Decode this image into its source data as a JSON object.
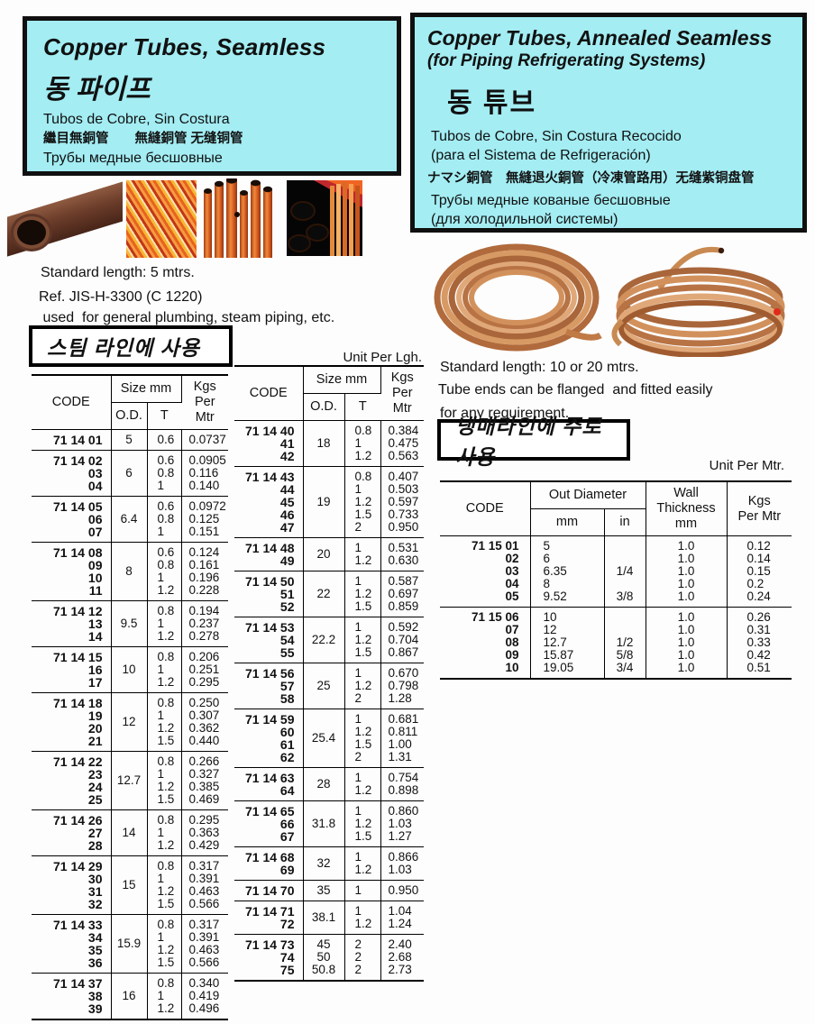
{
  "colors": {
    "header_bg": "#a3edf3",
    "border_black": "#101010",
    "copper": "#c4793f",
    "accent_red": "#d23b1e"
  },
  "header_left": {
    "title": "Copper Tubes, Seamless",
    "korean": "동 파이프",
    "spanish": "Tubos de Cobre, Sin Costura",
    "cjk": "繼目無銅管　　無縫銅管 无缝铜管",
    "russian": "Трубы медные бесшовные"
  },
  "header_right": {
    "title": "Copper Tubes, Annealed Seamless",
    "subtitle": "(for Piping Refrigerating Systems)",
    "korean": "동 튜브",
    "spanish1": "Tubos de Cobre, Sin Costura Recocido",
    "spanish2": "(para el Sistema de Refrigeración)",
    "cjk": "ナマシ銅管　無縫退火銅管（冷凍管路用）无缝紫铜盘管",
    "russian1": "Трубы медные кованые бесшовные",
    "russian2": "(для холодильной системы)"
  },
  "notes_left": {
    "line1": "Standard length: 5 mtrs.",
    "line2": "Ref. JIS-H-3300 (C 1220)",
    "line3": " used  for general plumbing, steam piping, etc."
  },
  "label_left_box": "스팀 라인에 사용",
  "unit_left": "Unit Per Lgh.",
  "notes_right": {
    "line1": "Standard length: 10 or 20 mtrs.",
    "line2": "Tube ends can be flanged  and fitted easily",
    "line3": "for any requirement."
  },
  "label_right_box": "냉매라인에 주로 사용",
  "unit_right": "Unit Per Mtr.",
  "left_table": {
    "columns": [
      "code",
      "od",
      "t",
      "kgs"
    ],
    "header": {
      "code": "CODE",
      "size": "Size mm",
      "od": "O.D.",
      "t": "T",
      "kgs": "Kgs\nPer\nMtr"
    },
    "groups": [
      {
        "code": "71 14 01",
        "od": "5",
        "t": "0.6",
        "kgs": "0.0737"
      },
      {
        "code": "71 14 02\n03\n04",
        "od": "6",
        "t": "0.6\n0.8\n1",
        "kgs": "0.0905\n0.116\n0.140"
      },
      {
        "code": "71 14 05\n06\n07",
        "od": "6.4",
        "t": "0.6\n0.8\n1",
        "kgs": "0.0972\n0.125\n0.151"
      },
      {
        "code": "71 14 08\n09\n10\n11",
        "od": "8",
        "t": "0.6\n0.8\n1\n1.2",
        "kgs": "0.124\n0.161\n0.196\n0.228"
      },
      {
        "code": "71 14 12\n13\n14",
        "od": "9.5",
        "t": "0.8\n1\n1.2",
        "kgs": "0.194\n0.237\n0.278"
      },
      {
        "code": "71 14 15\n16\n17",
        "od": "10",
        "t": "0.8\n1\n1.2",
        "kgs": "0.206\n0.251\n0.295"
      },
      {
        "code": "71 14 18\n19\n20\n21",
        "od": "12",
        "t": "0.8\n1\n1.2\n1.5",
        "kgs": "0.250\n0.307\n0.362\n0.440"
      },
      {
        "code": "71 14 22\n23\n24\n25",
        "od": "12.7",
        "t": "0.8\n1\n1.2\n1.5",
        "kgs": "0.266\n0.327\n0.385\n0.469"
      },
      {
        "code": "71 14 26\n27\n28",
        "od": "14",
        "t": "0.8\n1\n1.2",
        "kgs": "0.295\n0.363\n0.429"
      },
      {
        "code": "71 14 29\n30\n31\n32",
        "od": "15",
        "t": "0.8\n1\n1.2\n1.5",
        "kgs": "0.317\n0.391\n0.463\n0.566"
      },
      {
        "code": "71 14 33\n34\n35\n36",
        "od": "15.9",
        "t": "0.8\n1\n1.2\n1.5",
        "kgs": "0.317\n0.391\n0.463\n0.566"
      },
      {
        "code": "71 14 37\n38\n39",
        "od": "16",
        "t": "0.8\n1\n1.2",
        "kgs": "0.340\n0.419\n0.496"
      }
    ]
  },
  "middle_table": {
    "columns": [
      "code",
      "od",
      "t",
      "kgs"
    ],
    "header": {
      "code": "CODE",
      "size": "Size mm",
      "od": "O.D.",
      "t": "T",
      "kgs": "Kgs\nPer\nMtr"
    },
    "groups": [
      {
        "code": "71 14 40\n41\n42",
        "od": "18",
        "t": "0.8\n1\n1.2",
        "kgs": "0.384\n0.475\n0.563"
      },
      {
        "code": "71 14 43\n44\n45\n46\n47",
        "od": "19",
        "t": "0.8\n1\n1.2\n1.5\n2",
        "kgs": "0.407\n0.503\n0.597\n0.733\n0.950"
      },
      {
        "code": "71 14 48\n49",
        "od": "20",
        "t": "1\n1.2",
        "kgs": "0.531\n0.630"
      },
      {
        "code": "71 14 50\n51\n52",
        "od": "22",
        "t": "1\n1.2\n1.5",
        "kgs": "0.587\n0.697\n0.859"
      },
      {
        "code": "71 14 53\n54\n55",
        "od": "22.2",
        "t": "1\n1.2\n1.5",
        "kgs": "0.592\n0.704\n0.867"
      },
      {
        "code": "71 14 56\n57\n58",
        "od": "25",
        "t": "1\n1.2\n2",
        "kgs": "0.670\n0.798\n1.28"
      },
      {
        "code": "71 14 59\n60\n61\n62",
        "od": "25.4",
        "t": "1\n1.2\n1.5\n2",
        "kgs": "0.681\n0.811\n1.00\n1.31"
      },
      {
        "code": "71 14 63\n64",
        "od": "28",
        "t": "1\n1.2",
        "kgs": "0.754\n0.898"
      },
      {
        "code": "71 14 65\n66\n67",
        "od": "31.8",
        "t": "1\n1.2\n1.5",
        "kgs": "0.860\n1.03\n1.27"
      },
      {
        "code": "71 14 68\n69",
        "od": "32",
        "t": "1\n1.2",
        "kgs": "0.866\n1.03"
      },
      {
        "code": "71 14 70",
        "od": "35",
        "t": "1",
        "kgs": "0.950"
      },
      {
        "code": "71 14 71\n72",
        "od": "38.1",
        "t": "1\n1.2",
        "kgs": "1.04\n1.24"
      },
      {
        "code": "71 14 73\n74\n75",
        "od": "45\n50\n50.8",
        "t": "2\n2\n2",
        "kgs": "2.40\n2.68\n2.73"
      }
    ]
  },
  "right_table": {
    "columns": [
      "code",
      "mm",
      "in",
      "wall",
      "kgs"
    ],
    "header": {
      "code": "CODE",
      "out_diameter": "Out Diameter",
      "mm": "mm",
      "in": "in",
      "wall": "Wall\nThickness\nmm",
      "kgs": "Kgs\nPer Mtr"
    },
    "groups": [
      {
        "code": "71 15 01\n02\n03\n04\n05",
        "mm": "5\n6\n6.35\n8\n9.52",
        "in": " \n \n1/4\n \n3/8",
        "wall": "1.0\n1.0\n1.0\n1.0\n1.0",
        "kgs": "0.12\n0.14\n0.15\n0.2\n0.24"
      },
      {
        "code": "71 15 06\n07\n08\n09\n10",
        "mm": "10\n12\n12.7\n15.87\n19.05",
        "in": " \n \n1/2\n5/8\n3/4",
        "wall": "1.0\n1.0\n1.0\n1.0\n1.0",
        "kgs": "0.26\n0.31\n0.33\n0.42\n0.51"
      }
    ]
  }
}
